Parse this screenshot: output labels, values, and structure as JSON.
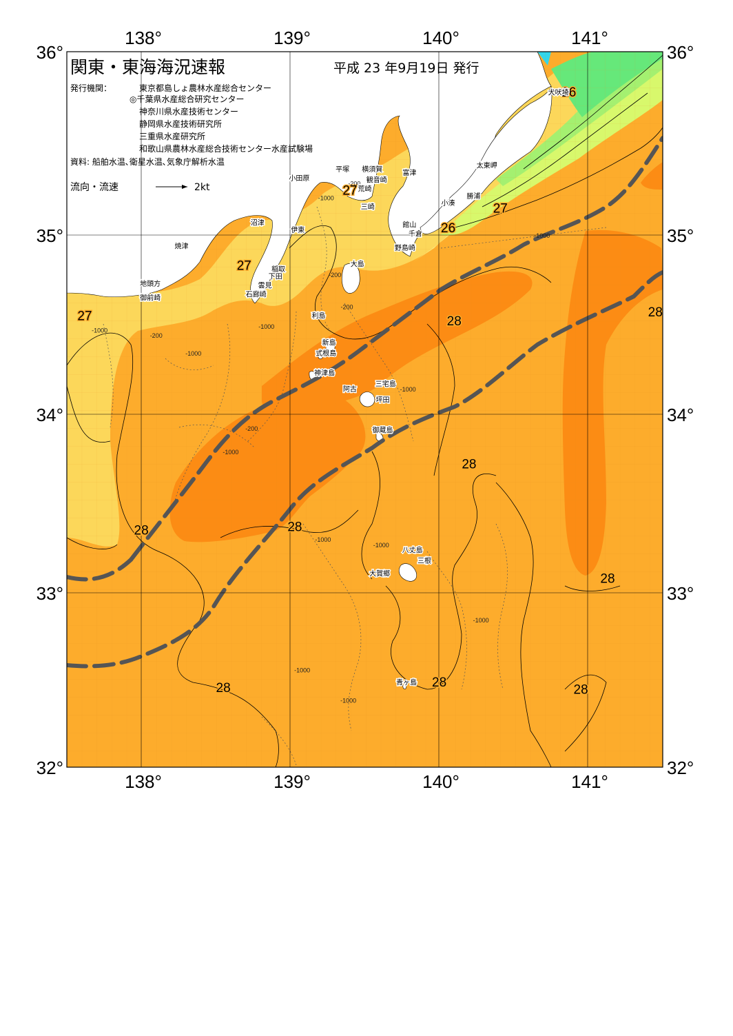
{
  "map": {
    "title": "関東・東海海況速報",
    "issued": "平成 23 年9月19日 発行",
    "publisher_label": "発行機関：",
    "publishers": [
      "東京都島しょ農林水産総合センター",
      "◎千葉県水産総合研究センター",
      "神奈川県水産技術センター",
      "静岡県水産技術研究所",
      "三重県水産研究所",
      "和歌山県農林水産総合技術センター水産試験場"
    ],
    "source": "資料: 船舶水温､衛星水温､気象庁解析水温",
    "flow_legend_label": "流向・流速",
    "flow_legend_value": "2kt",
    "lon_ticks": [
      "138°",
      "139°",
      "140°",
      "141°"
    ],
    "lat_ticks": [
      "36°",
      "35°",
      "34°",
      "33°",
      "32°"
    ],
    "temperature_labels": [
      {
        "text": "26",
        "lon": 140.87,
        "lat": 35.75
      },
      {
        "text": "27",
        "lon": 139.4,
        "lat": 35.2
      },
      {
        "text": "26",
        "lon": 140.06,
        "lat": 34.99
      },
      {
        "text": "27",
        "lon": 140.41,
        "lat": 35.1
      },
      {
        "text": "27",
        "lon": 138.69,
        "lat": 34.78
      },
      {
        "text": "27",
        "lon": 137.62,
        "lat": 34.5
      },
      {
        "text": "28",
        "lon": 140.1,
        "lat": 34.47
      },
      {
        "text": "28",
        "lon": 141.45,
        "lat": 34.52
      },
      {
        "text": "28",
        "lon": 140.2,
        "lat": 33.67
      },
      {
        "text": "28",
        "lon": 138.0,
        "lat": 33.3
      },
      {
        "text": "28",
        "lon": 139.03,
        "lat": 33.32
      },
      {
        "text": "28",
        "lon": 141.13,
        "lat": 33.03
      },
      {
        "text": "28",
        "lon": 138.55,
        "lat": 32.42
      },
      {
        "text": "28",
        "lon": 140.0,
        "lat": 32.45
      },
      {
        "text": "28",
        "lon": 140.95,
        "lat": 32.41
      }
    ],
    "depth_labels": [
      {
        "text": "-200",
        "lon": 139.43,
        "lat": 35.25
      },
      {
        "text": "-1000",
        "lon": 139.24,
        "lat": 35.17
      },
      {
        "text": "-200",
        "lon": 139.3,
        "lat": 34.74
      },
      {
        "text": "-200",
        "lon": 139.38,
        "lat": 34.56
      },
      {
        "text": "-1000",
        "lon": 138.84,
        "lat": 34.45
      },
      {
        "text": "-1000",
        "lon": 137.72,
        "lat": 34.43
      },
      {
        "text": "-200",
        "lon": 138.1,
        "lat": 34.4
      },
      {
        "text": "-1000",
        "lon": 138.35,
        "lat": 34.3
      },
      {
        "text": "-1000",
        "lon": 139.79,
        "lat": 34.1
      },
      {
        "text": "-200",
        "lon": 138.74,
        "lat": 33.88
      },
      {
        "text": "-1000",
        "lon": 138.6,
        "lat": 33.75
      },
      {
        "text": "-1000",
        "lon": 140.69,
        "lat": 34.96
      },
      {
        "text": "-1000",
        "lon": 139.22,
        "lat": 33.26
      },
      {
        "text": "-1000",
        "lon": 139.61,
        "lat": 33.23
      },
      {
        "text": "-1000",
        "lon": 140.28,
        "lat": 32.81
      },
      {
        "text": "-1000",
        "lon": 139.08,
        "lat": 32.53
      },
      {
        "text": "-1000",
        "lon": 139.39,
        "lat": 32.36
      }
    ],
    "place_labels": [
      {
        "text": "犬吠埼",
        "lon": 140.8,
        "lat": 35.76
      },
      {
        "text": "太東岬",
        "lon": 140.32,
        "lat": 35.35
      },
      {
        "text": "勝浦",
        "lon": 140.23,
        "lat": 35.18
      },
      {
        "text": "小湊",
        "lon": 140.06,
        "lat": 35.14
      },
      {
        "text": "館山",
        "lon": 139.8,
        "lat": 35.02
      },
      {
        "text": "千倉",
        "lon": 139.84,
        "lat": 34.97
      },
      {
        "text": "野島崎",
        "lon": 139.77,
        "lat": 34.89
      },
      {
        "text": "富津",
        "lon": 139.8,
        "lat": 35.31
      },
      {
        "text": "横須賀",
        "lon": 139.55,
        "lat": 35.33
      },
      {
        "text": "観音崎",
        "lon": 139.58,
        "lat": 35.27
      },
      {
        "text": "荒崎",
        "lon": 139.5,
        "lat": 35.22
      },
      {
        "text": "三崎",
        "lon": 139.52,
        "lat": 35.12
      },
      {
        "text": "平塚",
        "lon": 139.35,
        "lat": 35.33
      },
      {
        "text": "小田原",
        "lon": 139.06,
        "lat": 35.28
      },
      {
        "text": "沼津",
        "lon": 138.78,
        "lat": 35.03
      },
      {
        "text": "伊東",
        "lon": 139.05,
        "lat": 34.99
      },
      {
        "text": "焼津",
        "lon": 138.27,
        "lat": 34.9
      },
      {
        "text": "稲取",
        "lon": 138.92,
        "lat": 34.77
      },
      {
        "text": "下田",
        "lon": 138.9,
        "lat": 34.73
      },
      {
        "text": "雲見",
        "lon": 138.83,
        "lat": 34.68
      },
      {
        "text": "石廊崎",
        "lon": 138.77,
        "lat": 34.63
      },
      {
        "text": "地頭方",
        "lon": 138.06,
        "lat": 34.69
      },
      {
        "text": "御前崎",
        "lon": 138.06,
        "lat": 34.61
      },
      {
        "text": "大島",
        "lon": 139.45,
        "lat": 34.8
      },
      {
        "text": "利島",
        "lon": 139.19,
        "lat": 34.51
      },
      {
        "text": "新島",
        "lon": 139.26,
        "lat": 34.36
      },
      {
        "text": "式根島",
        "lon": 139.24,
        "lat": 34.3
      },
      {
        "text": "神津島",
        "lon": 139.23,
        "lat": 34.19
      },
      {
        "text": "三宅島",
        "lon": 139.64,
        "lat": 34.13
      },
      {
        "text": "阿古",
        "lon": 139.4,
        "lat": 34.1
      },
      {
        "text": "坪田",
        "lon": 139.62,
        "lat": 34.04
      },
      {
        "text": "御蔵島",
        "lon": 139.62,
        "lat": 33.87
      },
      {
        "text": "八丈島",
        "lon": 139.82,
        "lat": 33.2
      },
      {
        "text": "三根",
        "lon": 139.9,
        "lat": 33.14
      },
      {
        "text": "大賀郷",
        "lon": 139.6,
        "lat": 33.07
      },
      {
        "text": "青ヶ島",
        "lon": 139.78,
        "lat": 32.46
      }
    ],
    "colors": {
      "sea_28": "#fdac2c",
      "sea_warm_core": "#fc8c14",
      "sea_27": "#fcd75a",
      "sea_26": "#fce87c",
      "sea_25": "#d8f86c",
      "sea_24": "#a4f070",
      "sea_23": "#66e87a",
      "land": "#ffffff",
      "kuroshio_axis": "#555555"
    }
  }
}
